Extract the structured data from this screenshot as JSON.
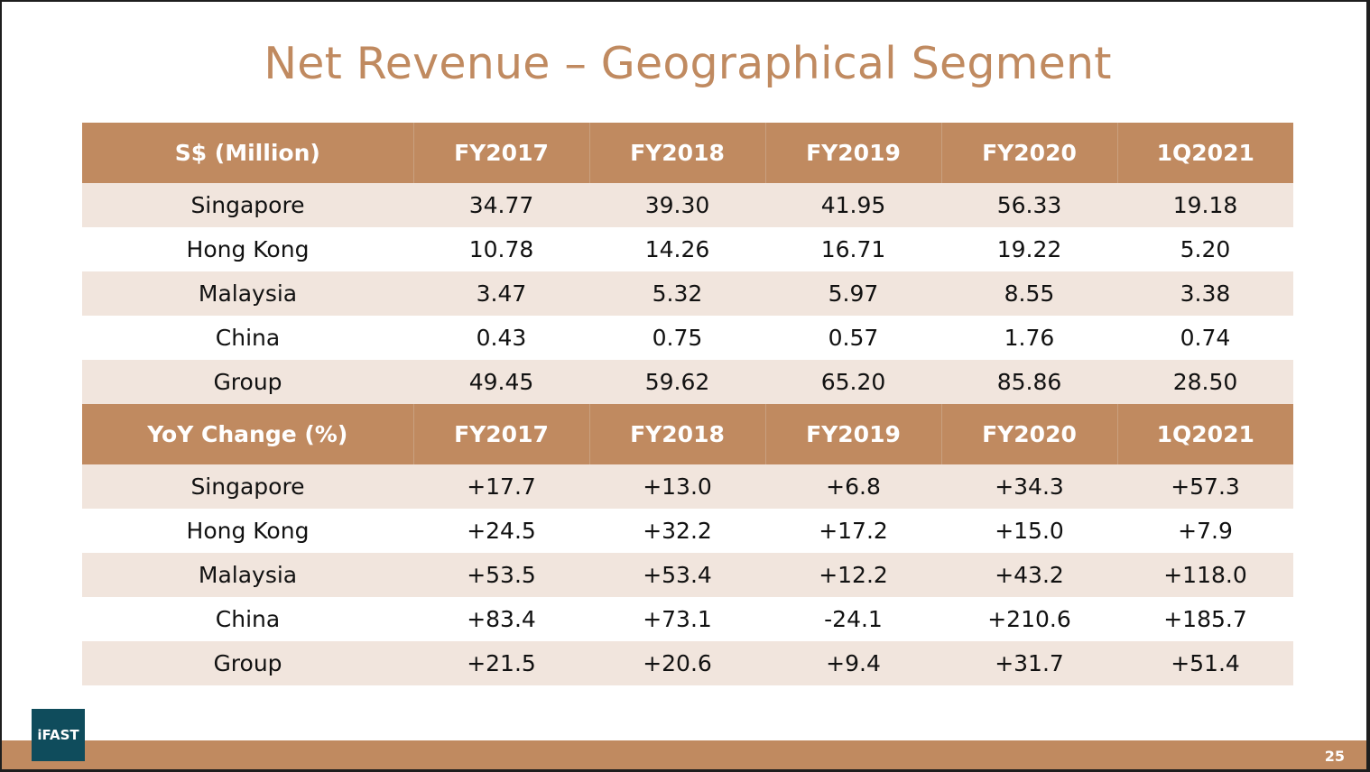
{
  "slide": {
    "title": "Net Revenue – Geographical Segment",
    "page_number": "25",
    "logo_text": "iFAST"
  },
  "colors": {
    "accent": "#c08a60",
    "row_shade": "#f1e5dd",
    "logo_bg": "#0f4c5c"
  },
  "revenue_table": {
    "header": [
      "S$ (Million)",
      "FY2017",
      "FY2018",
      "FY2019",
      "FY2020",
      "1Q2021"
    ],
    "rows": [
      [
        "Singapore",
        "34.77",
        "39.30",
        "41.95",
        "56.33",
        "19.18"
      ],
      [
        "Hong Kong",
        "10.78",
        "14.26",
        "16.71",
        "19.22",
        "5.20"
      ],
      [
        "Malaysia",
        "3.47",
        "5.32",
        "5.97",
        "8.55",
        "3.38"
      ],
      [
        "China",
        "0.43",
        "0.75",
        "0.57",
        "1.76",
        "0.74"
      ],
      [
        "Group",
        "49.45",
        "59.62",
        "65.20",
        "85.86",
        "28.50"
      ]
    ]
  },
  "yoy_table": {
    "header": [
      "YoY Change (%)",
      "FY2017",
      "FY2018",
      "FY2019",
      "FY2020",
      "1Q2021"
    ],
    "rows": [
      [
        "Singapore",
        "+17.7",
        "+13.0",
        "+6.8",
        "+34.3",
        "+57.3"
      ],
      [
        "Hong Kong",
        "+24.5",
        "+32.2",
        "+17.2",
        "+15.0",
        "+7.9"
      ],
      [
        "Malaysia",
        "+53.5",
        "+53.4",
        "+12.2",
        "+43.2",
        "+118.0"
      ],
      [
        "China",
        "+83.4",
        "+73.1",
        "-24.1",
        "+210.6",
        "+185.7"
      ],
      [
        "Group",
        "+21.5",
        "+20.6",
        "+9.4",
        "+31.7",
        "+51.4"
      ]
    ]
  }
}
